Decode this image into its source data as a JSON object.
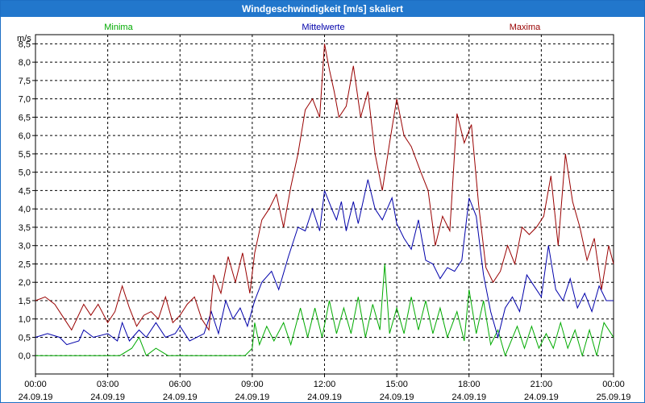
{
  "chart_data": {
    "type": "line",
    "title": "Windgeschwindigkeit [m/s] skaliert",
    "ylabel": "m/s",
    "ylim": [
      -0.5,
      8.75
    ],
    "yticks": [
      "0,0",
      "0,5",
      "1,0",
      "1,5",
      "2,0",
      "2,5",
      "3,0",
      "3,5",
      "4,0",
      "4,5",
      "5,0",
      "5,5",
      "6,0",
      "6,5",
      "7,0",
      "7,5",
      "8,0",
      "8,5"
    ],
    "xlim": [
      0,
      24
    ],
    "xticks": [
      {
        "time": "00:00",
        "date": "24.09.19"
      },
      {
        "time": "03:00",
        "date": "24.09.19"
      },
      {
        "time": "06:00",
        "date": "24.09.19"
      },
      {
        "time": "09:00",
        "date": "24.09.19"
      },
      {
        "time": "12:00",
        "date": "24.09.19"
      },
      {
        "time": "15:00",
        "date": "24.09.19"
      },
      {
        "time": "18:00",
        "date": "24.09.19"
      },
      {
        "time": "21:00",
        "date": "24.09.19"
      },
      {
        "time": "00:00",
        "date": "25.09.19"
      }
    ],
    "grid": true,
    "series": [
      {
        "name": "Minima",
        "color": "#00aa00",
        "points": [
          [
            0,
            0
          ],
          [
            2,
            0
          ],
          [
            3.5,
            0
          ],
          [
            4,
            0.2
          ],
          [
            4.3,
            0.5
          ],
          [
            4.6,
            0
          ],
          [
            5,
            0.2
          ],
          [
            5.5,
            0
          ],
          [
            7,
            0
          ],
          [
            8,
            0
          ],
          [
            8.7,
            0
          ],
          [
            9,
            0.2
          ],
          [
            9.1,
            0.9
          ],
          [
            9.3,
            0.3
          ],
          [
            9.6,
            0.8
          ],
          [
            9.9,
            0.4
          ],
          [
            10.3,
            0.9
          ],
          [
            10.6,
            0.3
          ],
          [
            11,
            1.3
          ],
          [
            11.3,
            0.5
          ],
          [
            11.6,
            1.3
          ],
          [
            11.9,
            0.5
          ],
          [
            12.2,
            1.5
          ],
          [
            12.5,
            0.6
          ],
          [
            12.8,
            1.3
          ],
          [
            13.1,
            0.6
          ],
          [
            13.4,
            1.6
          ],
          [
            13.7,
            0.5
          ],
          [
            14,
            1.4
          ],
          [
            14.3,
            0.7
          ],
          [
            14.5,
            2.5
          ],
          [
            14.7,
            0.6
          ],
          [
            15,
            1.3
          ],
          [
            15.3,
            0.6
          ],
          [
            15.6,
            1.6
          ],
          [
            15.9,
            0.7
          ],
          [
            16.2,
            1.5
          ],
          [
            16.5,
            0.6
          ],
          [
            16.8,
            1.3
          ],
          [
            17.1,
            0.5
          ],
          [
            17.5,
            1.2
          ],
          [
            17.8,
            0.4
          ],
          [
            18,
            1.8
          ],
          [
            18.3,
            0.6
          ],
          [
            18.6,
            1.5
          ],
          [
            18.9,
            0.3
          ],
          [
            19.2,
            0.7
          ],
          [
            19.5,
            0
          ],
          [
            20,
            0.8
          ],
          [
            20.3,
            0.2
          ],
          [
            20.6,
            0.8
          ],
          [
            20.9,
            0.2
          ],
          [
            21.2,
            0.6
          ],
          [
            21.5,
            0.2
          ],
          [
            21.8,
            0.9
          ],
          [
            22.1,
            0.2
          ],
          [
            22.4,
            0.7
          ],
          [
            22.7,
            0
          ],
          [
            23,
            0.7
          ],
          [
            23.3,
            0
          ],
          [
            23.6,
            0.9
          ],
          [
            24,
            0.5
          ]
        ]
      },
      {
        "name": "Mittelwerte",
        "color": "#0000aa",
        "points": [
          [
            0,
            0.5
          ],
          [
            0.5,
            0.6
          ],
          [
            1,
            0.5
          ],
          [
            1.3,
            0.3
          ],
          [
            1.8,
            0.4
          ],
          [
            2,
            0.7
          ],
          [
            2.4,
            0.5
          ],
          [
            3,
            0.6
          ],
          [
            3.4,
            0.4
          ],
          [
            3.6,
            0.9
          ],
          [
            3.9,
            0.4
          ],
          [
            4.3,
            0.7
          ],
          [
            4.6,
            0.5
          ],
          [
            5,
            0.9
          ],
          [
            5.4,
            0.5
          ],
          [
            5.8,
            0.6
          ],
          [
            6,
            0.8
          ],
          [
            6.4,
            0.4
          ],
          [
            7,
            0.6
          ],
          [
            7.3,
            1.2
          ],
          [
            7.6,
            0.6
          ],
          [
            7.9,
            1.5
          ],
          [
            8.2,
            1.0
          ],
          [
            8.5,
            1.3
          ],
          [
            8.8,
            0.8
          ],
          [
            9.1,
            1.5
          ],
          [
            9.4,
            2.0
          ],
          [
            9.8,
            2.3
          ],
          [
            10.1,
            1.8
          ],
          [
            10.5,
            2.7
          ],
          [
            10.9,
            3.5
          ],
          [
            11.2,
            3.4
          ],
          [
            11.5,
            4.0
          ],
          [
            11.8,
            3.4
          ],
          [
            12,
            4.5
          ],
          [
            12.3,
            4.0
          ],
          [
            12.5,
            3.7
          ],
          [
            12.7,
            4.2
          ],
          [
            12.9,
            3.4
          ],
          [
            13.2,
            4.2
          ],
          [
            13.4,
            3.6
          ],
          [
            13.8,
            4.8
          ],
          [
            14.1,
            4.0
          ],
          [
            14.4,
            3.7
          ],
          [
            14.8,
            4.3
          ],
          [
            15,
            3.6
          ],
          [
            15.3,
            3.2
          ],
          [
            15.6,
            2.9
          ],
          [
            15.9,
            3.7
          ],
          [
            16.2,
            2.6
          ],
          [
            16.5,
            2.5
          ],
          [
            16.8,
            2.1
          ],
          [
            17.1,
            2.4
          ],
          [
            17.4,
            2.3
          ],
          [
            17.7,
            2.6
          ],
          [
            18,
            4.3
          ],
          [
            18.3,
            3.8
          ],
          [
            18.6,
            2.2
          ],
          [
            18.9,
            1.2
          ],
          [
            19.2,
            0.5
          ],
          [
            19.5,
            1.3
          ],
          [
            19.8,
            1.6
          ],
          [
            20.1,
            1.2
          ],
          [
            20.4,
            2.2
          ],
          [
            20.7,
            1.9
          ],
          [
            21,
            1.6
          ],
          [
            21.3,
            3.0
          ],
          [
            21.6,
            1.8
          ],
          [
            21.9,
            1.5
          ],
          [
            22.2,
            2.1
          ],
          [
            22.5,
            1.3
          ],
          [
            22.8,
            1.7
          ],
          [
            23.1,
            1.2
          ],
          [
            23.4,
            1.9
          ],
          [
            23.7,
            1.5
          ],
          [
            24,
            1.5
          ]
        ]
      },
      {
        "name": "Maxima",
        "color": "#990000",
        "points": [
          [
            0,
            1.5
          ],
          [
            0.4,
            1.6
          ],
          [
            0.8,
            1.4
          ],
          [
            1.2,
            1.0
          ],
          [
            1.5,
            0.7
          ],
          [
            2,
            1.4
          ],
          [
            2.3,
            1.1
          ],
          [
            2.6,
            1.4
          ],
          [
            3,
            0.9
          ],
          [
            3.3,
            1.2
          ],
          [
            3.6,
            1.9
          ],
          [
            3.9,
            1.3
          ],
          [
            4.2,
            0.8
          ],
          [
            4.5,
            1.1
          ],
          [
            4.8,
            1.2
          ],
          [
            5.1,
            1.0
          ],
          [
            5.4,
            1.6
          ],
          [
            5.7,
            0.9
          ],
          [
            6,
            1.1
          ],
          [
            6.3,
            1.4
          ],
          [
            6.6,
            1.6
          ],
          [
            6.9,
            1.0
          ],
          [
            7.2,
            0.7
          ],
          [
            7.4,
            2.2
          ],
          [
            7.7,
            1.7
          ],
          [
            8,
            2.7
          ],
          [
            8.3,
            2.0
          ],
          [
            8.6,
            2.8
          ],
          [
            8.9,
            1.7
          ],
          [
            9.1,
            2.8
          ],
          [
            9.4,
            3.7
          ],
          [
            9.7,
            4.0
          ],
          [
            10,
            4.4
          ],
          [
            10.3,
            3.5
          ],
          [
            10.6,
            4.6
          ],
          [
            10.9,
            5.5
          ],
          [
            11.2,
            6.7
          ],
          [
            11.5,
            7.0
          ],
          [
            11.8,
            6.5
          ],
          [
            12,
            8.5
          ],
          [
            12.2,
            7.8
          ],
          [
            12.4,
            7.2
          ],
          [
            12.6,
            6.5
          ],
          [
            12.9,
            6.8
          ],
          [
            13.2,
            7.9
          ],
          [
            13.5,
            6.5
          ],
          [
            13.8,
            7.2
          ],
          [
            14.1,
            5.5
          ],
          [
            14.4,
            4.5
          ],
          [
            14.7,
            5.8
          ],
          [
            15,
            7.0
          ],
          [
            15.3,
            6.0
          ],
          [
            15.6,
            5.7
          ],
          [
            16,
            5.0
          ],
          [
            16.3,
            4.5
          ],
          [
            16.6,
            3.0
          ],
          [
            16.9,
            3.8
          ],
          [
            17.2,
            3.4
          ],
          [
            17.5,
            6.6
          ],
          [
            17.8,
            5.8
          ],
          [
            18.1,
            6.3
          ],
          [
            18.4,
            4.1
          ],
          [
            18.7,
            2.4
          ],
          [
            19,
            2.0
          ],
          [
            19.3,
            2.3
          ],
          [
            19.6,
            3.0
          ],
          [
            19.9,
            2.5
          ],
          [
            20.2,
            3.5
          ],
          [
            20.5,
            3.3
          ],
          [
            20.8,
            3.5
          ],
          [
            21.1,
            3.8
          ],
          [
            21.4,
            4.9
          ],
          [
            21.7,
            3.0
          ],
          [
            22,
            5.5
          ],
          [
            22.3,
            4.2
          ],
          [
            22.6,
            3.5
          ],
          [
            22.9,
            2.6
          ],
          [
            23.2,
            3.2
          ],
          [
            23.5,
            1.8
          ],
          [
            23.8,
            3.0
          ],
          [
            24,
            2.5
          ]
        ]
      }
    ]
  }
}
